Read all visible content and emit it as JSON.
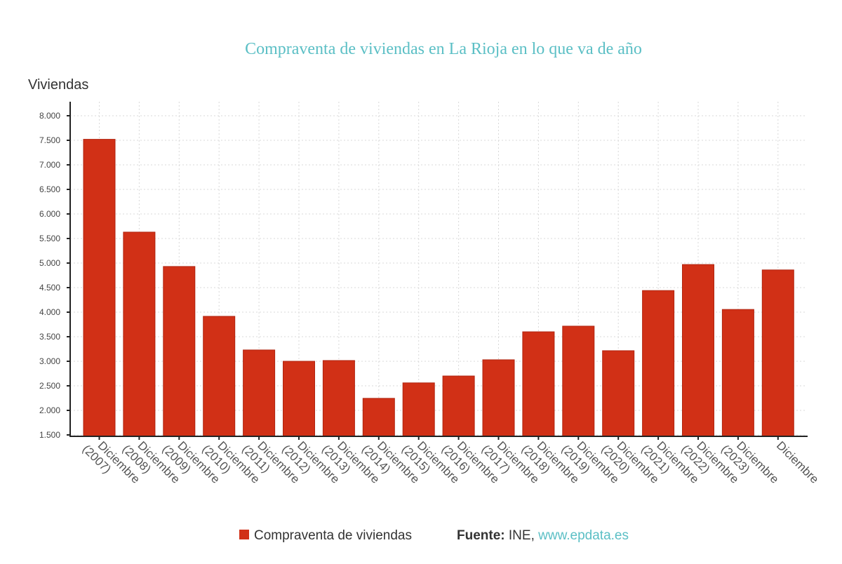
{
  "chart_data": {
    "type": "bar",
    "title": "Compraventa de viviendas en La Rioja en lo que va de año",
    "ylabel": "Viviendas",
    "xlabel": "",
    "ylim": [
      1500,
      8000
    ],
    "yticks": [
      1500,
      2000,
      2500,
      3000,
      3500,
      4000,
      4500,
      5000,
      5500,
      6000,
      6500,
      7000,
      7500,
      8000
    ],
    "ytick_labels": [
      "1.500",
      "2.000",
      "2.500",
      "3.000",
      "3.500",
      "4.000",
      "4.500",
      "5.000",
      "5.500",
      "6.000",
      "6.500",
      "7.000",
      "7.500",
      "8.000"
    ],
    "categories": [
      [
        "Diciembre",
        "(2007)"
      ],
      [
        "Diciembre",
        "(2008)"
      ],
      [
        "Diciembre",
        "(2009)"
      ],
      [
        "Diciembre",
        "(2010)"
      ],
      [
        "Diciembre",
        "(2011)"
      ],
      [
        "Diciembre",
        "(2012)"
      ],
      [
        "Diciembre",
        "(2013)"
      ],
      [
        "Diciembre",
        "(2014)"
      ],
      [
        "Diciembre",
        "(2015)"
      ],
      [
        "Diciembre",
        "(2016)"
      ],
      [
        "Diciembre",
        "(2017)"
      ],
      [
        "Diciembre",
        "(2018)"
      ],
      [
        "Diciembre",
        "(2019)"
      ],
      [
        "Diciembre",
        "(2020)"
      ],
      [
        "Diciembre",
        "(2021)"
      ],
      [
        "Diciembre",
        "(2022)"
      ],
      [
        "Diciembre",
        "(2023)"
      ],
      [
        "Diciembre"
      ]
    ],
    "series": [
      {
        "name": "Compraventa de viviendas",
        "color": "#d13016",
        "values": [
          7520,
          5630,
          4930,
          3915,
          3230,
          3000,
          3015,
          2245,
          2560,
          2700,
          3030,
          3600,
          3715,
          3215,
          4440,
          4970,
          4055,
          4860
        ]
      }
    ],
    "grid": true,
    "legend_position": "bottom-center"
  },
  "source": {
    "label": "Fuente:",
    "name": "INE,",
    "link": "www.epdata.es"
  }
}
